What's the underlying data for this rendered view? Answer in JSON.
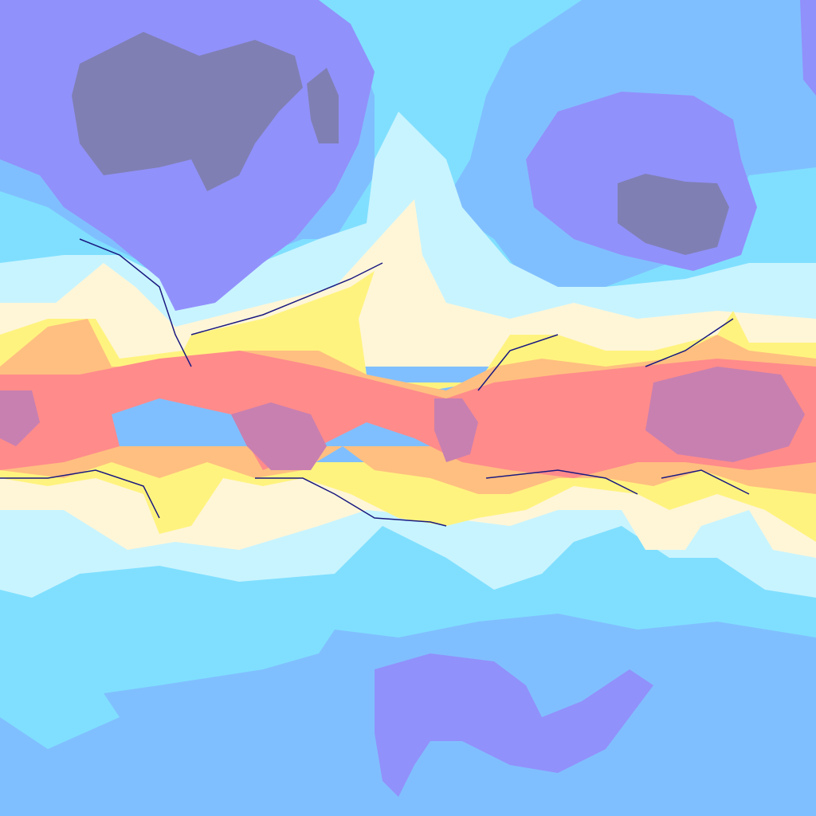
{
  "map": {
    "projection": "equirectangular",
    "palette": {
      "coldest": "#7f7fb4",
      "very_cold": "#9191fb",
      "cold": "#80bfff",
      "cool": "#80dfff",
      "mild_cool": "#c8f4ff",
      "mild": "#fff6d8",
      "warm": "#fff37f",
      "hot": "#ffbf80",
      "very_hot": "#ff8b8b",
      "hottest": "#c880b0",
      "contour": "#1a1a80"
    }
  }
}
